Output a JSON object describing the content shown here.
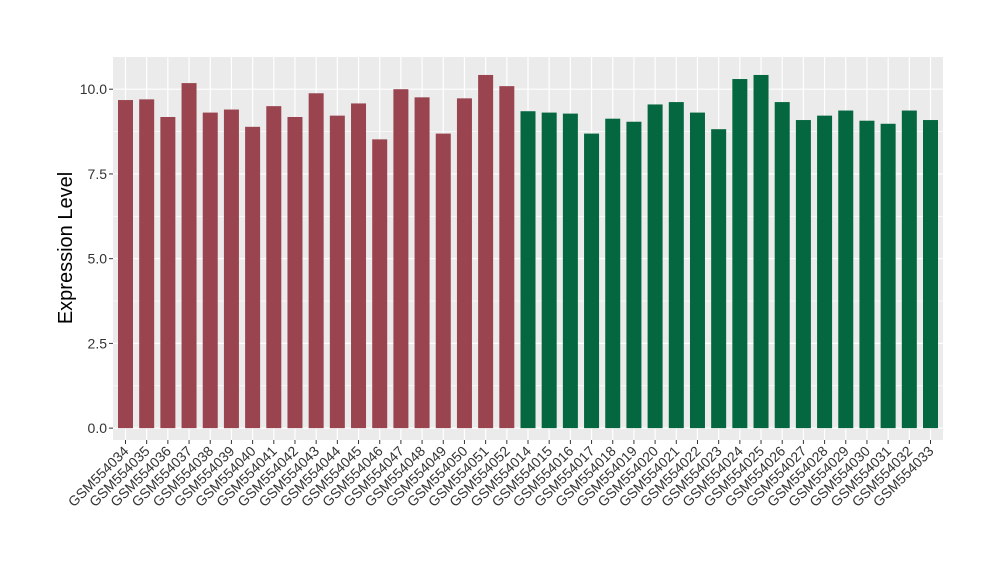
{
  "chart_data": {
    "type": "bar",
    "ylabel": "Expression Level",
    "xlabel": "",
    "ylim": [
      -0.35,
      10.95
    ],
    "yticks": [
      0.0,
      2.5,
      5.0,
      7.5,
      10.0
    ],
    "ytick_labels": [
      "0.0",
      "2.5",
      "5.0",
      "7.5",
      "10.0"
    ],
    "grid": true,
    "categories": [
      "GSM554034",
      "GSM554035",
      "GSM554036",
      "GSM554037",
      "GSM554038",
      "GSM554039",
      "GSM554040",
      "GSM554041",
      "GSM554042",
      "GSM554043",
      "GSM554044",
      "GSM554045",
      "GSM554046",
      "GSM554047",
      "GSM554048",
      "GSM554049",
      "GSM554050",
      "GSM554051",
      "GSM554052",
      "GSM554014",
      "GSM554015",
      "GSM554016",
      "GSM554017",
      "GSM554018",
      "GSM554019",
      "GSM554020",
      "GSM554021",
      "GSM554022",
      "GSM554023",
      "GSM554024",
      "GSM554025",
      "GSM554026",
      "GSM554027",
      "GSM554028",
      "GSM554029",
      "GSM554030",
      "GSM554031",
      "GSM554032",
      "GSM554033"
    ],
    "values": [
      9.68,
      9.7,
      9.18,
      10.18,
      9.31,
      9.4,
      8.89,
      9.5,
      9.18,
      9.88,
      9.22,
      9.58,
      8.52,
      10.0,
      9.76,
      8.69,
      9.73,
      10.42,
      10.09,
      9.35,
      9.31,
      9.28,
      8.69,
      9.13,
      9.04,
      9.55,
      9.62,
      9.31,
      8.82,
      10.3,
      10.42,
      9.62,
      9.09,
      9.22,
      9.37,
      9.07,
      8.98,
      9.37,
      9.09
    ],
    "groups": [
      {
        "count": 19,
        "color": "#99444f"
      },
      {
        "count": 20,
        "color": "#04673f"
      }
    ],
    "colors": {
      "panel_background": "#ebebeb",
      "grid_major": "#ffffff",
      "axis_text": "#333333",
      "tick_color": "#333333"
    }
  }
}
